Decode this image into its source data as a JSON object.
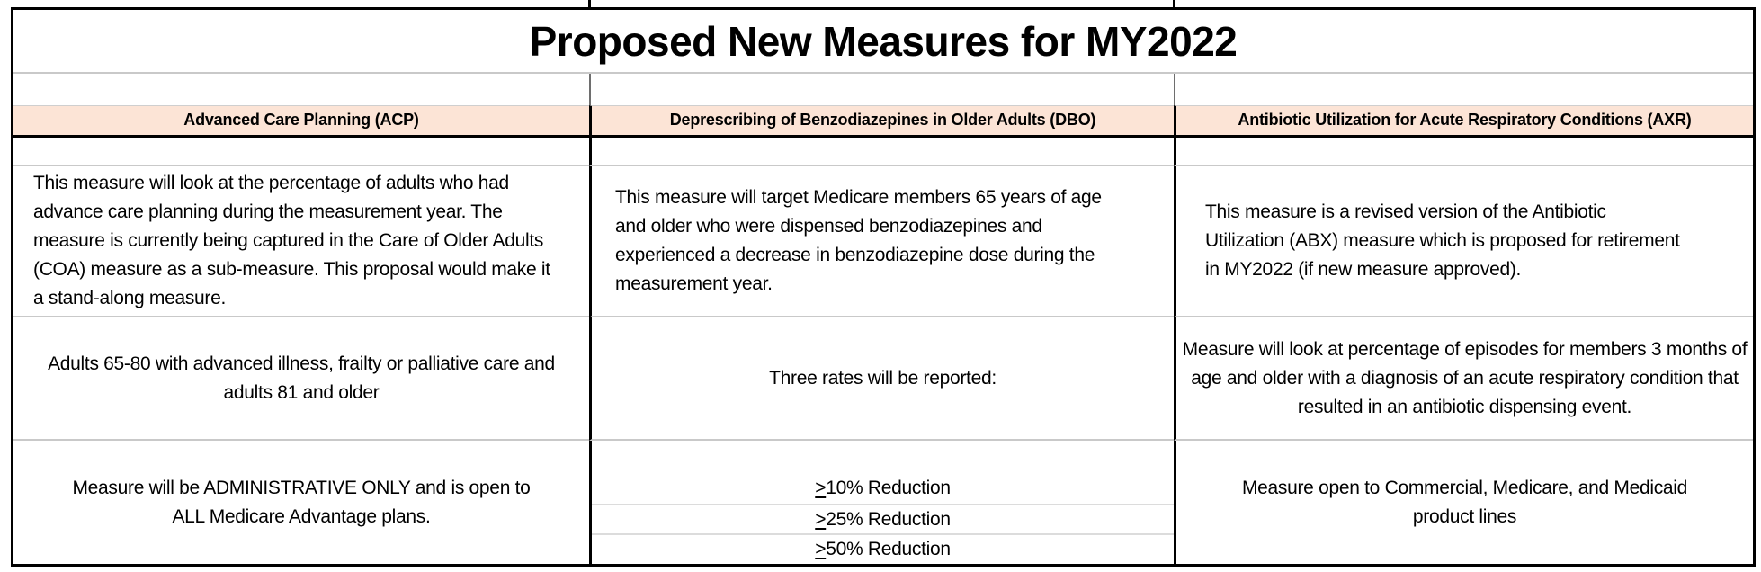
{
  "title": "Proposed New Measures for MY2022",
  "colors": {
    "header_bg": "#fce4d6",
    "border_black": "#000000",
    "grid_gray": "#c9c9c9"
  },
  "columns": [
    {
      "header": "Advanced Care Planning (ACP)",
      "description": "This measure will look at the percentage of adults who had advance care planning during the measurement year. The measure is currently being captured in the Care of Older Adults (COA) measure as a sub-measure. This proposal would make it a stand-along measure.",
      "population": "Adults 65-80 with advanced illness, frailty or palliative care and adults 81 and older",
      "details": "Measure will be ADMINISTRATIVE ONLY and is open to ALL Medicare Advantage plans."
    },
    {
      "header": "Deprescribing of Benzodiazepines in Older Adults (DBO)",
      "description": "This measure will target Medicare members 65 years of age and older who were dispensed benzodiazepines and experienced a decrease in benzodiazepine dose during the measurement year.",
      "population": "Three rates will be reported:",
      "rates": [
        {
          "prefix": ">",
          "label": "10% Reduction"
        },
        {
          "prefix": ">",
          "label": "25% Reduction"
        },
        {
          "prefix": ">",
          "label": "50% Reduction"
        }
      ]
    },
    {
      "header": "Antibiotic Utilization for Acute Respiratory Conditions (AXR)",
      "description": "This measure is a revised version of the Antibiotic Utilization (ABX) measure which is proposed for retirement in MY2022 (if new measure approved).",
      "population": "Measure will look at percentage of episodes for members 3 months of age and older with a diagnosis of an acute respiratory condition that resulted in an antibiotic dispensing event.",
      "details": "Measure open to Commercial, Medicare, and Medicaid product lines"
    }
  ]
}
